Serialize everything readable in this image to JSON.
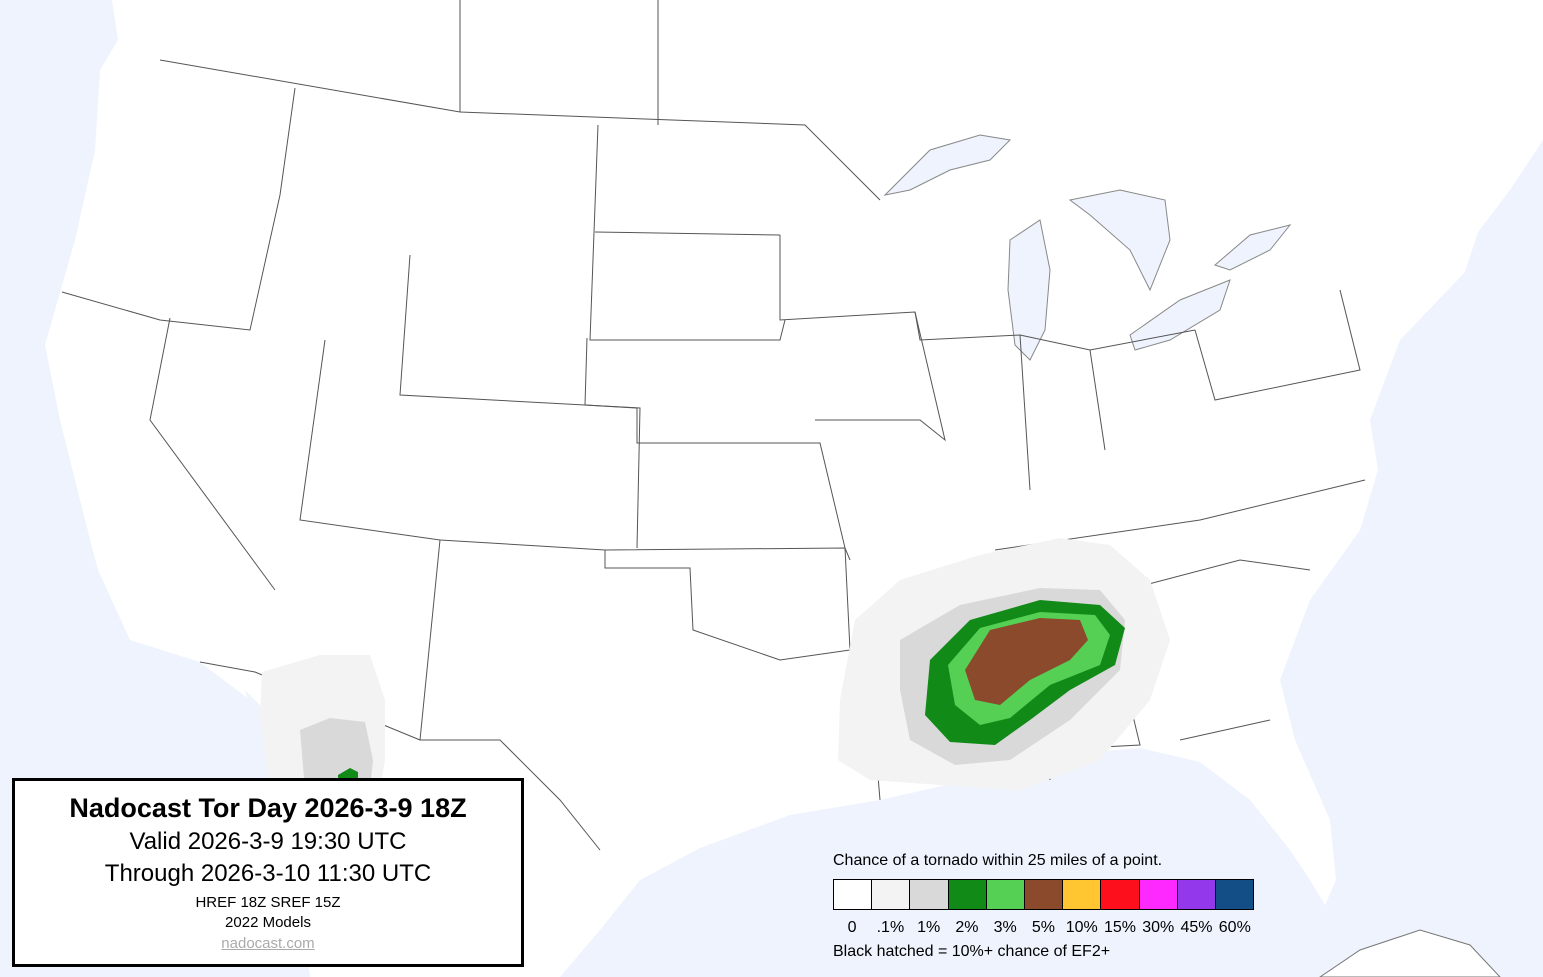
{
  "title_box": {
    "title": "Nadocast Tor Day 2026-3-9 18Z",
    "valid": "Valid 2026-3-9 19:30 UTC",
    "through": "Through 2026-3-10 11:30 UTC",
    "models_run": "HREF 18Z SREF 15Z",
    "models_version": "2022 Models",
    "link": "nadocast.com"
  },
  "legend": {
    "title": "Chance of a tornado within 25 miles of a point.",
    "bins": [
      {
        "label": "0",
        "color": "#ffffff"
      },
      {
        "label": ".1%",
        "color": "#f3f3f3"
      },
      {
        "label": "1%",
        "color": "#d9d9d9"
      },
      {
        "label": "2%",
        "color": "#118a17"
      },
      {
        "label": "3%",
        "color": "#55d055"
      },
      {
        "label": "5%",
        "color": "#8b4a2b"
      },
      {
        "label": "10%",
        "color": "#ffc631"
      },
      {
        "label": "15%",
        "color": "#fe0f1c"
      },
      {
        "label": "30%",
        "color": "#fe29fe"
      },
      {
        "label": "45%",
        "color": "#9338ea"
      },
      {
        "label": "60%",
        "color": "#134e87"
      }
    ],
    "note": "Black hatched = 10%+ chance of EF2+"
  },
  "colors": {
    "water": "#eef3fd",
    "land": "#ffffff",
    "borders": "#555555"
  }
}
